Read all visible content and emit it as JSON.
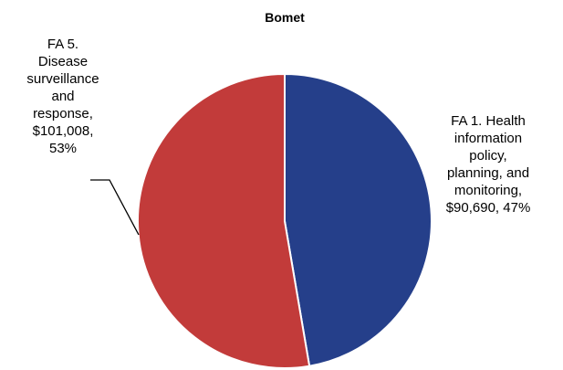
{
  "chart_data": {
    "type": "pie",
    "title": "Bomet",
    "slices": [
      {
        "label_lines": [
          "FA 1. Health",
          "information",
          "policy,",
          "planning, and",
          "monitoring,",
          "$90,690, 47%"
        ],
        "category": "FA 1. Health information policy, planning, and monitoring",
        "value": 90690,
        "percent": 47,
        "color": "#253f8a"
      },
      {
        "label_lines": [
          "FA 5.",
          "Disease",
          "surveillance",
          "and",
          "response,",
          "$101,008,",
          "53%"
        ],
        "category": "FA 5. Disease surveillance and response",
        "value": 101008,
        "percent": 53,
        "color": "#c23b3a"
      }
    ]
  }
}
